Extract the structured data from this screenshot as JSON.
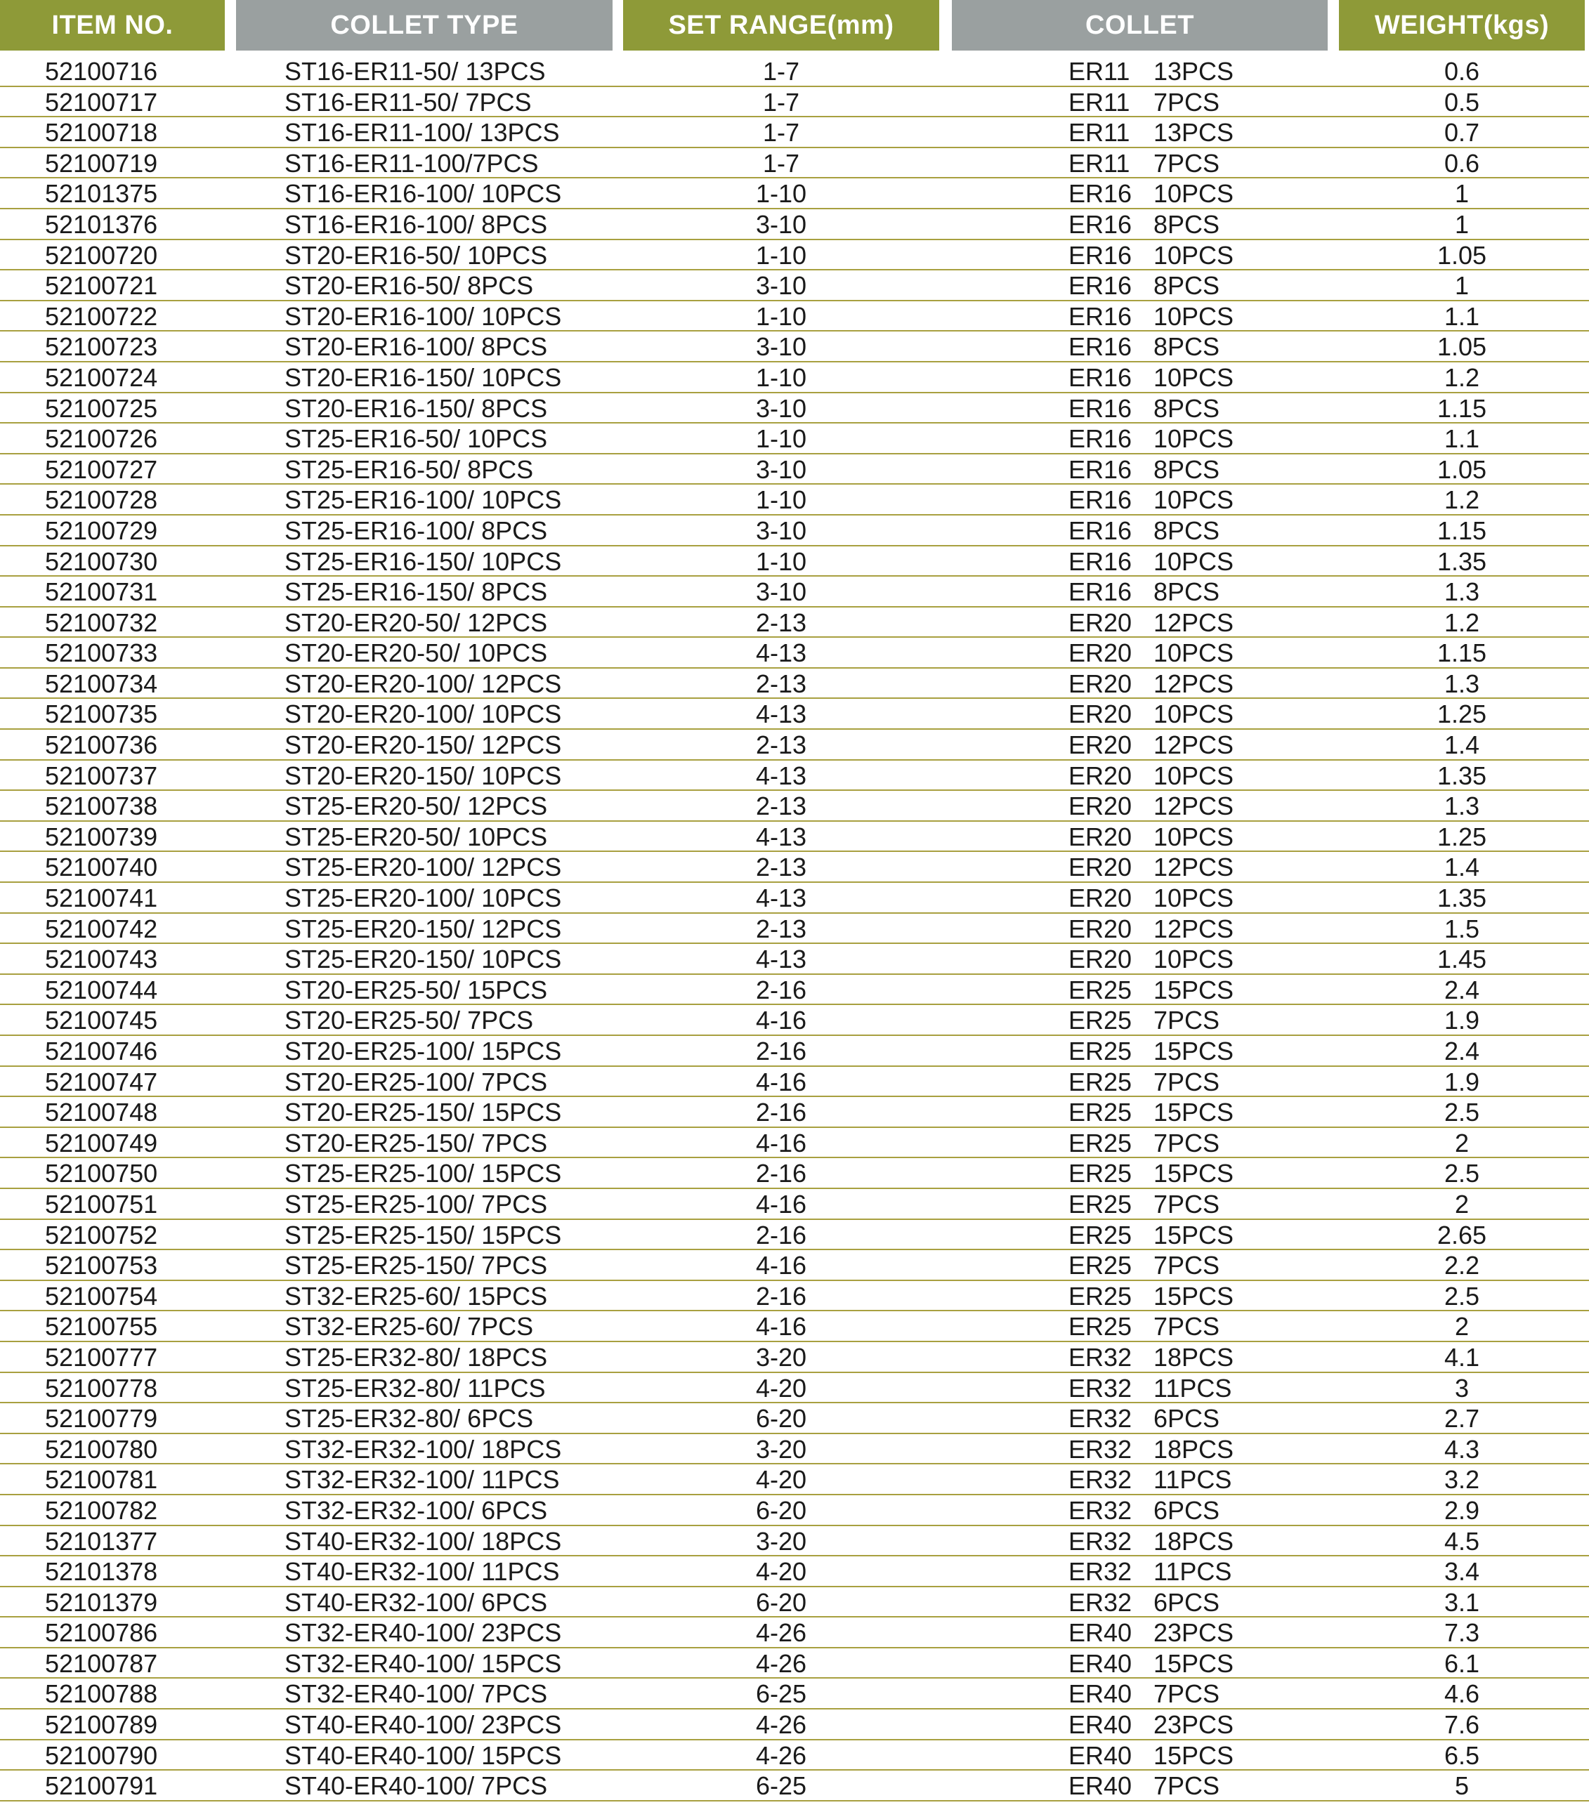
{
  "header": {
    "item_no": "ITEM NO.",
    "collet_type": "COLLET TYPE",
    "set_range": "SET RANGE(mm)",
    "collet": "COLLET",
    "weight": "WEIGHT(kgs)"
  },
  "colors": {
    "header_olive": "#8e9a38",
    "header_gray": "#9aa0a0",
    "row_line": "#a8a040"
  },
  "rows": [
    [
      "52100716",
      "ST16-ER11-50/ 13PCS",
      "1-7",
      "ER11",
      "13PCS",
      "0.6"
    ],
    [
      "52100717",
      "ST16-ER11-50/ 7PCS",
      "1-7",
      "ER11",
      "7PCS",
      "0.5"
    ],
    [
      "52100718",
      "ST16-ER11-100/ 13PCS",
      "1-7",
      "ER11",
      "13PCS",
      "0.7"
    ],
    [
      "52100719",
      "ST16-ER11-100/7PCS",
      "1-7",
      "ER11",
      "7PCS",
      "0.6"
    ],
    [
      "52101375",
      "ST16-ER16-100/ 10PCS",
      "1-10",
      "ER16",
      "10PCS",
      "1"
    ],
    [
      "52101376",
      "ST16-ER16-100/ 8PCS",
      "3-10",
      "ER16",
      "8PCS",
      "1"
    ],
    [
      "52100720",
      "ST20-ER16-50/ 10PCS",
      "1-10",
      "ER16",
      "10PCS",
      "1.05"
    ],
    [
      "52100721",
      "ST20-ER16-50/ 8PCS",
      "3-10",
      "ER16",
      "8PCS",
      "1"
    ],
    [
      "52100722",
      "ST20-ER16-100/ 10PCS",
      "1-10",
      "ER16",
      "10PCS",
      "1.1"
    ],
    [
      "52100723",
      "ST20-ER16-100/ 8PCS",
      "3-10",
      "ER16",
      "8PCS",
      "1.05"
    ],
    [
      "52100724",
      "ST20-ER16-150/ 10PCS",
      "1-10",
      "ER16",
      "10PCS",
      "1.2"
    ],
    [
      "52100725",
      "ST20-ER16-150/ 8PCS",
      "3-10",
      "ER16",
      "8PCS",
      "1.15"
    ],
    [
      "52100726",
      "ST25-ER16-50/ 10PCS",
      "1-10",
      "ER16",
      "10PCS",
      "1.1"
    ],
    [
      "52100727",
      "ST25-ER16-50/ 8PCS",
      "3-10",
      "ER16",
      "8PCS",
      "1.05"
    ],
    [
      "52100728",
      "ST25-ER16-100/ 10PCS",
      "1-10",
      "ER16",
      "10PCS",
      "1.2"
    ],
    [
      "52100729",
      "ST25-ER16-100/ 8PCS",
      "3-10",
      "ER16",
      "8PCS",
      "1.15"
    ],
    [
      "52100730",
      "ST25-ER16-150/ 10PCS",
      "1-10",
      "ER16",
      "10PCS",
      "1.35"
    ],
    [
      "52100731",
      "ST25-ER16-150/ 8PCS",
      "3-10",
      "ER16",
      "8PCS",
      "1.3"
    ],
    [
      "52100732",
      "ST20-ER20-50/ 12PCS",
      "2-13",
      "ER20",
      "12PCS",
      "1.2"
    ],
    [
      "52100733",
      "ST20-ER20-50/ 10PCS",
      "4-13",
      "ER20",
      "10PCS",
      "1.15"
    ],
    [
      "52100734",
      "ST20-ER20-100/ 12PCS",
      "2-13",
      "ER20",
      "12PCS",
      "1.3"
    ],
    [
      "52100735",
      "ST20-ER20-100/ 10PCS",
      "4-13",
      "ER20",
      "10PCS",
      "1.25"
    ],
    [
      "52100736",
      "ST20-ER20-150/ 12PCS",
      "2-13",
      "ER20",
      "12PCS",
      "1.4"
    ],
    [
      "52100737",
      "ST20-ER20-150/ 10PCS",
      "4-13",
      "ER20",
      "10PCS",
      "1.35"
    ],
    [
      "52100738",
      "ST25-ER20-50/ 12PCS",
      "2-13",
      "ER20",
      "12PCS",
      "1.3"
    ],
    [
      "52100739",
      "ST25-ER20-50/ 10PCS",
      "4-13",
      "ER20",
      "10PCS",
      "1.25"
    ],
    [
      "52100740",
      "ST25-ER20-100/ 12PCS",
      "2-13",
      "ER20",
      "12PCS",
      "1.4"
    ],
    [
      "52100741",
      "ST25-ER20-100/ 10PCS",
      "4-13",
      "ER20",
      "10PCS",
      "1.35"
    ],
    [
      "52100742",
      "ST25-ER20-150/ 12PCS",
      "2-13",
      "ER20",
      "12PCS",
      "1.5"
    ],
    [
      "52100743",
      "ST25-ER20-150/ 10PCS",
      "4-13",
      "ER20",
      "10PCS",
      "1.45"
    ],
    [
      "52100744",
      "ST20-ER25-50/ 15PCS",
      "2-16",
      "ER25",
      "15PCS",
      "2.4"
    ],
    [
      "52100745",
      "ST20-ER25-50/ 7PCS",
      "4-16",
      "ER25",
      "7PCS",
      "1.9"
    ],
    [
      "52100746",
      "ST20-ER25-100/ 15PCS",
      "2-16",
      "ER25",
      "15PCS",
      "2.4"
    ],
    [
      "52100747",
      "ST20-ER25-100/ 7PCS",
      "4-16",
      "ER25",
      "7PCS",
      "1.9"
    ],
    [
      "52100748",
      "ST20-ER25-150/ 15PCS",
      "2-16",
      "ER25",
      "15PCS",
      "2.5"
    ],
    [
      "52100749",
      "ST20-ER25-150/ 7PCS",
      "4-16",
      "ER25",
      "7PCS",
      "2"
    ],
    [
      "52100750",
      "ST25-ER25-100/ 15PCS",
      "2-16",
      "ER25",
      "15PCS",
      "2.5"
    ],
    [
      "52100751",
      "ST25-ER25-100/ 7PCS",
      "4-16",
      "ER25",
      "7PCS",
      "2"
    ],
    [
      "52100752",
      "ST25-ER25-150/ 15PCS",
      "2-16",
      "ER25",
      "15PCS",
      "2.65"
    ],
    [
      "52100753",
      "ST25-ER25-150/ 7PCS",
      "4-16",
      "ER25",
      "7PCS",
      "2.2"
    ],
    [
      "52100754",
      "ST32-ER25-60/ 15PCS",
      "2-16",
      "ER25",
      "15PCS",
      "2.5"
    ],
    [
      "52100755",
      "ST32-ER25-60/ 7PCS",
      "4-16",
      "ER25",
      "7PCS",
      "2"
    ],
    [
      "52100777",
      "ST25-ER32-80/ 18PCS",
      "3-20",
      "ER32",
      "18PCS",
      "4.1"
    ],
    [
      "52100778",
      "ST25-ER32-80/ 11PCS",
      "4-20",
      "ER32",
      "11PCS",
      "3"
    ],
    [
      "52100779",
      "ST25-ER32-80/ 6PCS",
      "6-20",
      "ER32",
      "6PCS",
      "2.7"
    ],
    [
      "52100780",
      "ST32-ER32-100/ 18PCS",
      "3-20",
      "ER32",
      "18PCS",
      "4.3"
    ],
    [
      "52100781",
      "ST32-ER32-100/ 11PCS",
      "4-20",
      "ER32",
      "11PCS",
      "3.2"
    ],
    [
      "52100782",
      "ST32-ER32-100/ 6PCS",
      "6-20",
      "ER32",
      "6PCS",
      "2.9"
    ],
    [
      "52101377",
      "ST40-ER32-100/ 18PCS",
      "3-20",
      "ER32",
      "18PCS",
      "4.5"
    ],
    [
      "52101378",
      "ST40-ER32-100/ 11PCS",
      "4-20",
      "ER32",
      "11PCS",
      "3.4"
    ],
    [
      "52101379",
      "ST40-ER32-100/ 6PCS",
      "6-20",
      "ER32",
      "6PCS",
      "3.1"
    ],
    [
      "52100786",
      "ST32-ER40-100/ 23PCS",
      "4-26",
      "ER40",
      "23PCS",
      "7.3"
    ],
    [
      "52100787",
      "ST32-ER40-100/ 15PCS",
      "4-26",
      "ER40",
      "15PCS",
      "6.1"
    ],
    [
      "52100788",
      "ST32-ER40-100/ 7PCS",
      "6-25",
      "ER40",
      "7PCS",
      "4.6"
    ],
    [
      "52100789",
      "ST40-ER40-100/ 23PCS",
      "4-26",
      "ER40",
      "23PCS",
      "7.6"
    ],
    [
      "52100790",
      "ST40-ER40-100/ 15PCS",
      "4-26",
      "ER40",
      "15PCS",
      "6.5"
    ],
    [
      "52100791",
      "ST40-ER40-100/ 7PCS",
      "6-25",
      "ER40",
      "7PCS",
      "5"
    ]
  ]
}
